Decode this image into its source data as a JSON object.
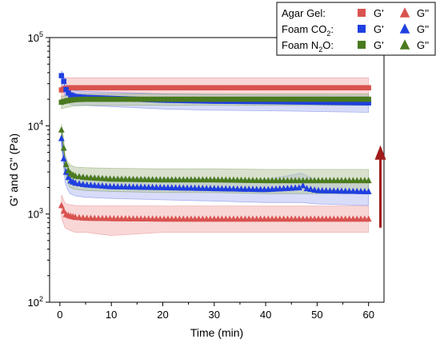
{
  "chart_data": {
    "type": "scatter",
    "xlabel": "Time (min)",
    "ylabel": "G' and G'' (Pa)",
    "x_ticks": [
      "0",
      "10",
      "20",
      "30",
      "40",
      "50",
      "60"
    ],
    "y_ticks": [
      {
        "base": "10",
        "exp": "2",
        "value": 100
      },
      {
        "base": "10",
        "exp": "3",
        "value": 1000
      },
      {
        "base": "10",
        "exp": "4",
        "value": 10000
      },
      {
        "base": "10",
        "exp": "5",
        "value": 100000
      }
    ],
    "xlim": [
      -2,
      63
    ],
    "ylim": [
      100,
      100000
    ],
    "y_scale": "log",
    "legend": {
      "position": "top-right",
      "rows": [
        {
          "group": "Agar Gel:",
          "label_main": "Agar Gel:",
          "label_sub": "",
          "label_tail": "",
          "gp_label": "G'",
          "gpp_label": "G''",
          "color": "#d9534f"
        },
        {
          "group": "Foam CO2:",
          "label_main": "Foam CO",
          "label_sub": "2",
          "label_tail": ":",
          "gp_label": "G'",
          "gpp_label": "G''",
          "color": "#1f3fe0"
        },
        {
          "group": "Foam N2O:",
          "label_main": "Foam N",
          "label_sub": "2",
          "label_tail": "O:",
          "gp_label": "G'",
          "gpp_label": "G''",
          "color": "#4a7a1e"
        }
      ]
    },
    "series": [
      {
        "group": "Agar Gel",
        "quantity": "G'",
        "marker": "square",
        "color": "#d9534f",
        "band": "#f4b6b6",
        "x": [
          0.3,
          1,
          2,
          3,
          5,
          10,
          20,
          30,
          40,
          50,
          60
        ],
        "y": [
          25500,
          26500,
          27000,
          27000,
          27000,
          27000,
          27000,
          27000,
          27000,
          27000,
          27000
        ],
        "y_low": [
          18000,
          19000,
          19500,
          19500,
          20000,
          20000,
          20000,
          20000,
          20000,
          20000,
          20000
        ],
        "y_high": [
          34000,
          35000,
          35000,
          35000,
          35000,
          35000,
          35000,
          35000,
          35000,
          35000,
          35000
        ]
      },
      {
        "group": "Agar Gel",
        "quantity": "G''",
        "marker": "triangle",
        "color": "#d9534f",
        "band": "#f4b6b6",
        "x": [
          0.3,
          1,
          2,
          3,
          5,
          10,
          20,
          30,
          40,
          50,
          60
        ],
        "y": [
          1250,
          1000,
          950,
          920,
          900,
          890,
          880,
          880,
          880,
          880,
          880
        ],
        "y_low": [
          900,
          700,
          650,
          620,
          620,
          570,
          620,
          620,
          620,
          620,
          620
        ],
        "y_high": [
          1650,
          1320,
          1270,
          1250,
          1240,
          1240,
          1230,
          1230,
          1230,
          1230,
          1230
        ]
      },
      {
        "group": "Foam CO2",
        "quantity": "G'",
        "marker": "square",
        "color": "#1f3fe0",
        "band": "#b8c0f2",
        "x": [
          0.3,
          0.7,
          1,
          1.5,
          2,
          3,
          5,
          10,
          15,
          20,
          30,
          40,
          50,
          60
        ],
        "y": [
          37000,
          33000,
          27000,
          24000,
          22500,
          21500,
          21000,
          20500,
          20000,
          19500,
          19000,
          18800,
          18500,
          18200
        ],
        "y_low": [
          30000,
          26000,
          21000,
          18500,
          17500,
          17000,
          17000,
          16500,
          16000,
          15500,
          15000,
          14800,
          14500,
          14200
        ],
        "y_high": [
          42000,
          38000,
          32000,
          28000,
          26000,
          25000,
          24500,
          24000,
          23500,
          23000,
          22500,
          22200,
          22000,
          21800
        ]
      },
      {
        "group": "Foam CO2",
        "quantity": "G''",
        "marker": "triangle",
        "color": "#1f3fe0",
        "band": "#b8c0f2",
        "x": [
          0.3,
          0.7,
          1,
          1.5,
          2,
          3,
          5,
          10,
          20,
          30,
          40,
          47,
          50,
          60
        ],
        "y": [
          7200,
          4500,
          3200,
          2700,
          2400,
          2250,
          2150,
          2050,
          2000,
          1950,
          1900,
          2000,
          1850,
          1800
        ],
        "y_low": [
          6000,
          3500,
          2300,
          1900,
          1700,
          1600,
          1550,
          1500,
          1450,
          1400,
          1350,
          1350,
          1300,
          1250
        ],
        "y_high": [
          8800,
          5600,
          4000,
          3400,
          3000,
          2800,
          2700,
          2600,
          2550,
          2500,
          2450,
          2900,
          2400,
          2350
        ]
      },
      {
        "group": "Foam N2O",
        "quantity": "G'",
        "marker": "square",
        "color": "#4a7a1e",
        "band": "#b9c9a6",
        "x": [
          0.3,
          1,
          2,
          3,
          5,
          10,
          20,
          30,
          40,
          50,
          60
        ],
        "y": [
          18500,
          19000,
          19500,
          19800,
          20000,
          20000,
          20000,
          20000,
          20000,
          20000,
          20000
        ],
        "y_low": [
          15500,
          16000,
          16500,
          16800,
          17000,
          17000,
          17000,
          17000,
          17000,
          17000,
          17000
        ],
        "y_high": [
          21500,
          22000,
          22500,
          22800,
          23000,
          23000,
          23000,
          23000,
          23000,
          23000,
          23000
        ]
      },
      {
        "group": "Foam N2O",
        "quantity": "G''",
        "marker": "triangle",
        "color": "#4a7a1e",
        "band": "#b9c9a6",
        "x": [
          0.3,
          0.7,
          1,
          1.5,
          2,
          3,
          5,
          10,
          20,
          30,
          40,
          50,
          60
        ],
        "y": [
          9000,
          6000,
          4000,
          3200,
          2900,
          2700,
          2600,
          2500,
          2450,
          2450,
          2400,
          2400,
          2400
        ],
        "y_low": [
          7500,
          4500,
          3000,
          2300,
          2000,
          1900,
          1850,
          1800,
          1750,
          1750,
          1700,
          1700,
          1700
        ],
        "y_high": [
          10500,
          7300,
          4800,
          3900,
          3600,
          3400,
          3350,
          3300,
          3250,
          3250,
          3200,
          3200,
          3200
        ]
      }
    ],
    "annotations": [
      {
        "type": "arrow",
        "direction": "up",
        "color": "#a11b1b",
        "x": 62.3,
        "y_from": 700,
        "y_to": 6000
      }
    ]
  }
}
